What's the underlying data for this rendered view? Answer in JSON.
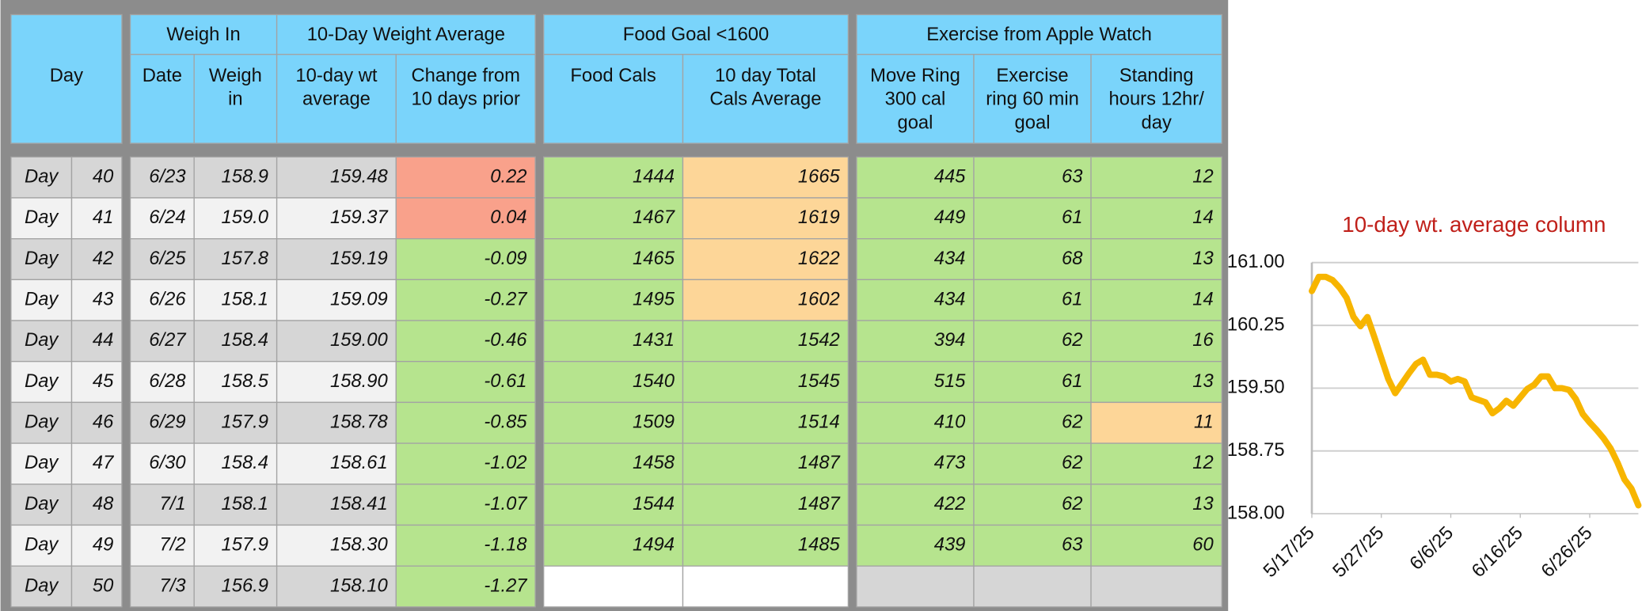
{
  "table": {
    "day_header": "Day",
    "groups": [
      "Weigh In",
      "10-Day Weight Average",
      "Food Goal <1600",
      "Exercise from Apple Watch"
    ],
    "columns": [
      [
        "Date"
      ],
      [
        "Weigh",
        "in"
      ],
      [
        "10-day wt",
        "average"
      ],
      [
        "Change from",
        "10 days prior"
      ],
      [
        "Food Cals"
      ],
      [
        "10 day Total",
        "Cals Average"
      ],
      [
        "Move Ring",
        "300 cal",
        "goal"
      ],
      [
        "Exercise",
        "ring 60 min",
        "goal"
      ],
      [
        "Standing",
        "hours 12hr/",
        "day"
      ]
    ],
    "rows": [
      [
        "Day",
        "40",
        "6/23",
        "158.9",
        "159.48",
        "0.22",
        "1444",
        "1665",
        "445",
        "63",
        "12"
      ],
      [
        "Day",
        "41",
        "6/24",
        "159.0",
        "159.37",
        "0.04",
        "1467",
        "1619",
        "449",
        "61",
        "14"
      ],
      [
        "Day",
        "42",
        "6/25",
        "157.8",
        "159.19",
        "-0.09",
        "1465",
        "1622",
        "434",
        "68",
        "13"
      ],
      [
        "Day",
        "43",
        "6/26",
        "158.1",
        "159.09",
        "-0.27",
        "1495",
        "1602",
        "434",
        "61",
        "14"
      ],
      [
        "Day",
        "44",
        "6/27",
        "158.4",
        "159.00",
        "-0.46",
        "1431",
        "1542",
        "394",
        "62",
        "16"
      ],
      [
        "Day",
        "45",
        "6/28",
        "158.5",
        "158.90",
        "-0.61",
        "1540",
        "1545",
        "515",
        "61",
        "13"
      ],
      [
        "Day",
        "46",
        "6/29",
        "157.9",
        "158.78",
        "-0.85",
        "1509",
        "1514",
        "410",
        "62",
        "11"
      ],
      [
        "Day",
        "47",
        "6/30",
        "158.4",
        "158.61",
        "-1.02",
        "1458",
        "1487",
        "473",
        "62",
        "12"
      ],
      [
        "Day",
        "48",
        "7/1",
        "158.1",
        "158.41",
        "-1.07",
        "1544",
        "1487",
        "422",
        "62",
        "13"
      ],
      [
        "Day",
        "49",
        "7/2",
        "157.9",
        "158.30",
        "-1.18",
        "1494",
        "1485",
        "439",
        "63",
        "60"
      ],
      [
        "Day",
        "50",
        "7/3",
        "156.9",
        "158.10",
        "-1.27"
      ]
    ]
  },
  "chart_data": {
    "type": "line",
    "title": "10-day wt. average column",
    "x": [
      "5/17/25",
      "5/18/25",
      "5/19/25",
      "5/20/25",
      "5/21/25",
      "5/22/25",
      "5/23/25",
      "5/24/25",
      "5/25/25",
      "5/26/25",
      "5/27/25",
      "5/28/25",
      "5/29/25",
      "5/30/25",
      "5/31/25",
      "6/1/25",
      "6/2/25",
      "6/3/25",
      "6/4/25",
      "6/5/25",
      "6/6/25",
      "6/7/25",
      "6/8/25",
      "6/9/25",
      "6/10/25",
      "6/11/25",
      "6/12/25",
      "6/13/25",
      "6/14/25",
      "6/15/25",
      "6/16/25",
      "6/17/25",
      "6/18/25",
      "6/19/25",
      "6/20/25",
      "6/21/25",
      "6/22/25",
      "6/23/25",
      "6/24/25",
      "6/25/25",
      "6/26/25",
      "6/27/25",
      "6/28/25",
      "6/29/25",
      "6/30/25",
      "7/1/25",
      "7/2/25",
      "7/3/25"
    ],
    "series": [
      {
        "name": "10-day wt average",
        "color": "#f7b500",
        "values": [
          160.66,
          160.83,
          160.83,
          160.79,
          160.7,
          160.58,
          160.35,
          160.24,
          160.35,
          160.11,
          159.86,
          159.61,
          159.44,
          159.56,
          159.68,
          159.79,
          159.84,
          159.66,
          159.66,
          159.64,
          159.58,
          159.61,
          159.58,
          159.39,
          159.36,
          159.33,
          159.2,
          159.26,
          159.35,
          159.29,
          159.39,
          159.49,
          159.54,
          159.64,
          159.64,
          159.5,
          159.5,
          159.48,
          159.37,
          159.19,
          159.09,
          159.0,
          158.9,
          158.78,
          158.61,
          158.41,
          158.3,
          158.1
        ]
      }
    ],
    "ylim": [
      158,
      161
    ],
    "yticks": [
      {
        "value": 158,
        "label": "158.00"
      },
      {
        "value": 158.75,
        "label": "158.75"
      },
      {
        "value": 159.5,
        "label": "159.50"
      },
      {
        "value": 160.25,
        "label": "160.25"
      },
      {
        "value": 161,
        "label": "161.00"
      }
    ],
    "xticks": [
      "5/17/25",
      "5/27/25",
      "6/6/25",
      "6/16/25",
      "6/26/25"
    ],
    "grid": true
  }
}
